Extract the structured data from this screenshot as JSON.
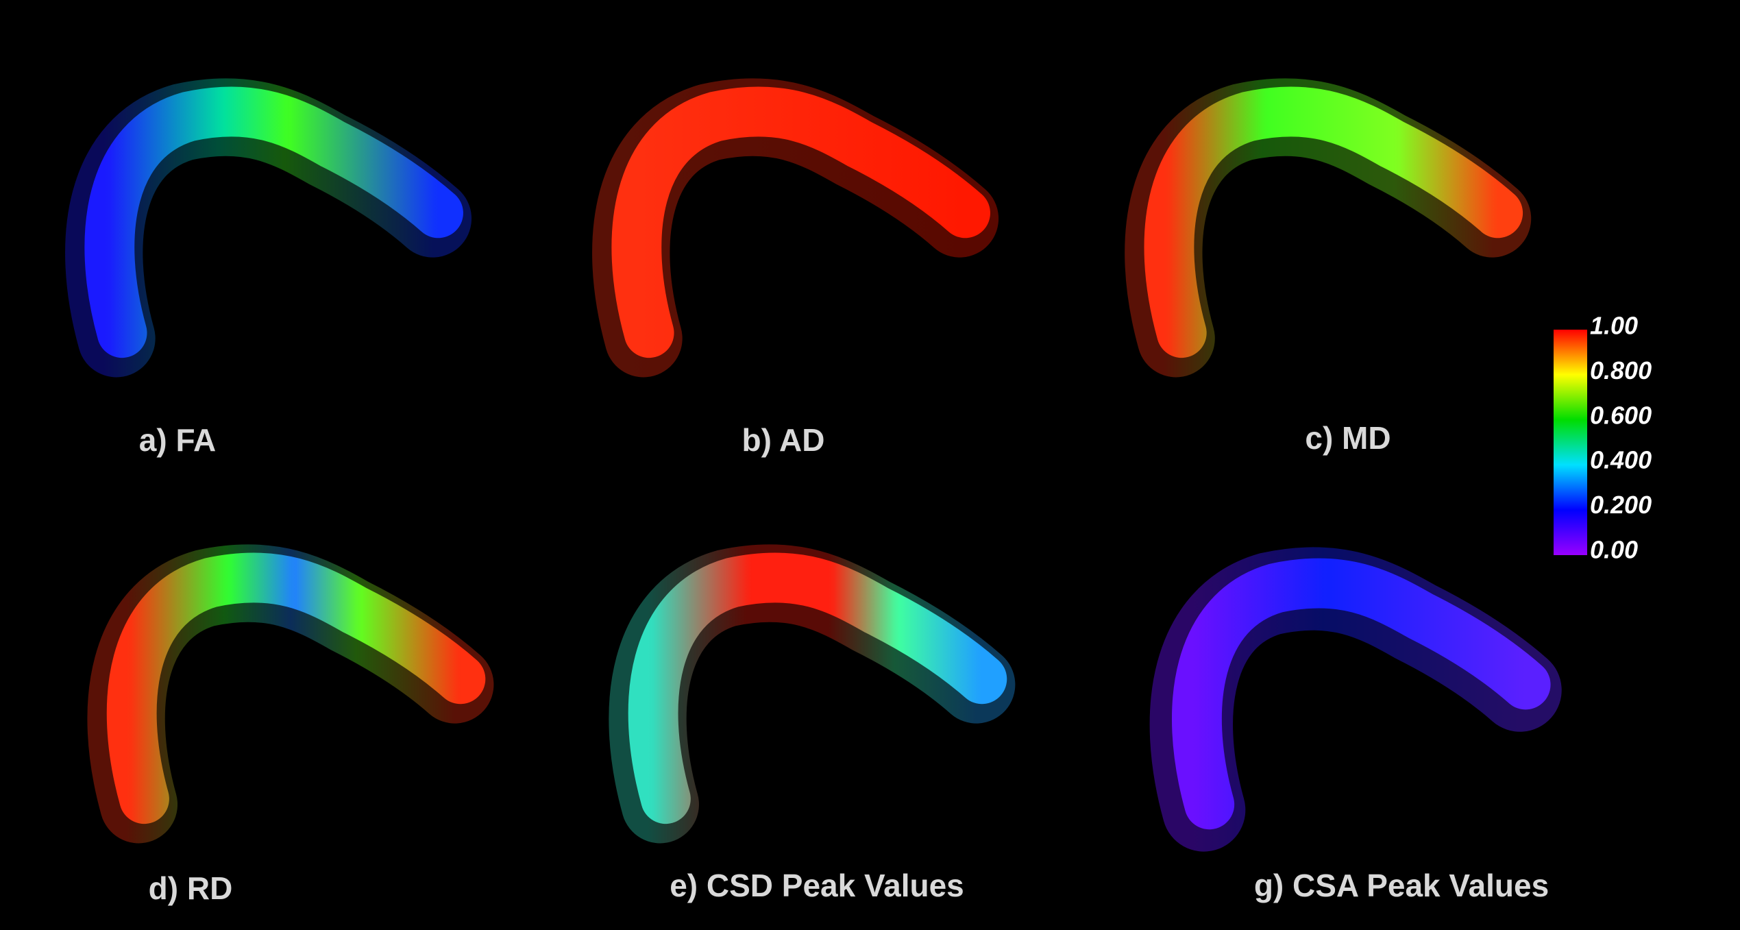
{
  "panels": [
    {
      "label": "a) FA"
    },
    {
      "label": "b) AD"
    },
    {
      "label": "c) MD"
    },
    {
      "label": "d) RD"
    },
    {
      "label": "e) CSD Peak Values"
    },
    {
      "label": "g) CSA Peak Values"
    }
  ],
  "colorbar": {
    "ticks": [
      "1.00",
      "0.800",
      "0.600",
      "0.400",
      "0.200",
      "0.00"
    ]
  }
}
